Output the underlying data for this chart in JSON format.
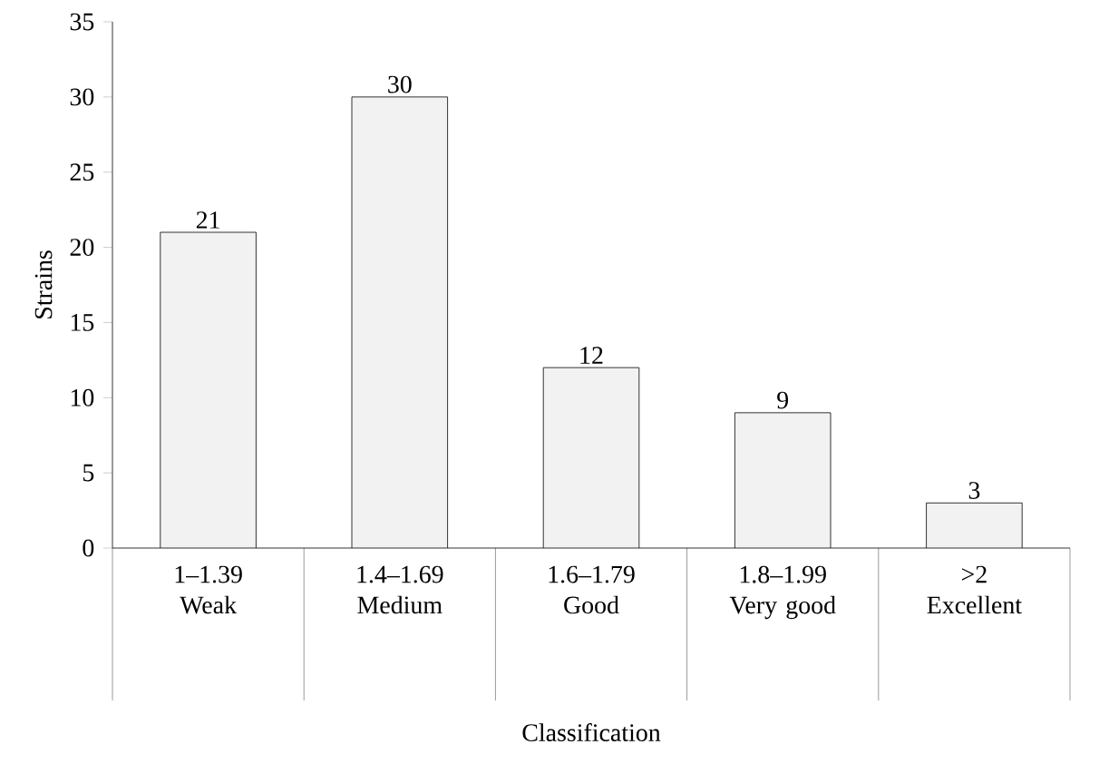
{
  "chart_data": {
    "type": "bar",
    "xlabel": "Classification",
    "ylabel": "Strains",
    "categories": [
      "1–1.39 Weak",
      "1.4–1.69 Medium",
      "1.6–1.79 Good",
      "1.8–1.99 Very good",
      ">2 Excellent"
    ],
    "values": [
      21,
      30,
      12,
      9,
      3
    ],
    "color": "#f2f2f2",
    "ylim": [
      0,
      35
    ],
    "yticks": [
      0,
      5,
      10,
      15,
      20,
      25,
      30,
      35
    ],
    "data_labels": true
  }
}
